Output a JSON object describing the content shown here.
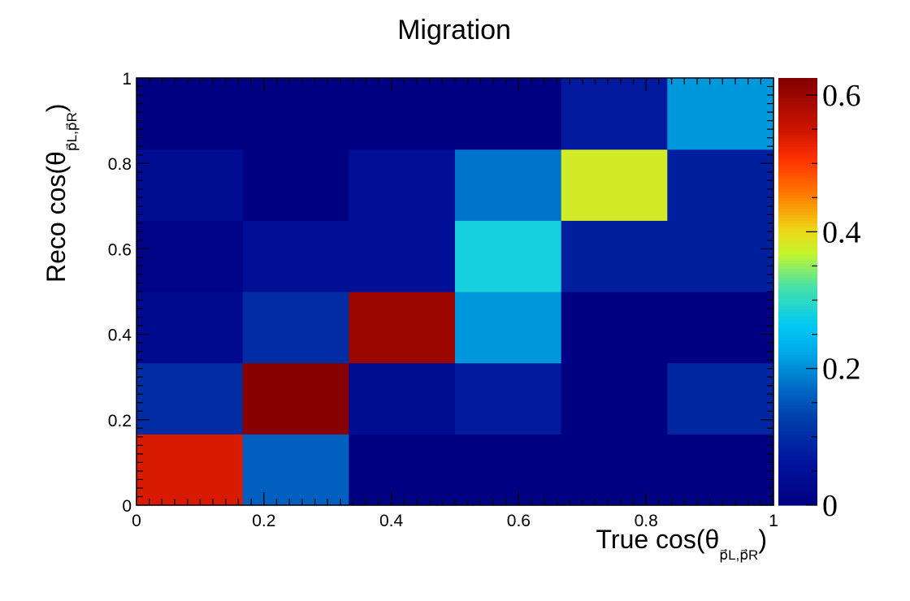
{
  "chart_data": {
    "type": "heatmap",
    "title": "Migration",
    "xlabel": {
      "text": "True cos(θ",
      "sub": "p⃗L,p⃗R",
      "close": ")"
    },
    "ylabel": {
      "text": "Reco cos(θ",
      "sub": "p⃗L,p⃗R",
      "close": ")"
    },
    "x_edges": [
      0,
      0.1667,
      0.3333,
      0.5,
      0.6667,
      0.8333,
      1.0
    ],
    "y_edges": [
      0,
      0.1667,
      0.3333,
      0.5,
      0.6667,
      0.8333,
      1.0
    ],
    "xlim": [
      0,
      1
    ],
    "ylim": [
      0,
      1
    ],
    "x_ticks": [
      0,
      0.2,
      0.4,
      0.6,
      0.8,
      1
    ],
    "x_tick_labels": [
      "0",
      "0.2",
      "0.4",
      "0.6",
      "0.8",
      "1"
    ],
    "y_ticks": [
      0,
      0.2,
      0.4,
      0.6,
      0.8,
      1
    ],
    "y_tick_labels": [
      "0",
      "0.2",
      "0.4",
      "0.6",
      "0.8",
      "1"
    ],
    "values_by_row_bottom_to_top": [
      [
        0.54,
        0.16,
        0.0,
        0.0,
        0.0,
        0.0
      ],
      [
        0.1,
        0.62,
        0.04,
        0.07,
        0.0,
        0.09
      ],
      [
        0.03,
        0.1,
        0.6,
        0.21,
        0.0,
        0.0
      ],
      [
        0.01,
        0.05,
        0.05,
        0.28,
        0.08,
        0.08
      ],
      [
        0.04,
        0.0,
        0.05,
        0.18,
        0.38,
        0.08
      ],
      [
        0.0,
        0.0,
        0.0,
        0.0,
        0.07,
        0.21
      ]
    ],
    "zlim": [
      0,
      0.625
    ],
    "colorbar_ticks": [
      0,
      0.2,
      0.4,
      0.6
    ],
    "colorbar_tick_labels": [
      "0",
      "0.2",
      "0.4",
      "0.6"
    ],
    "colormap": "jet",
    "grid": false
  }
}
